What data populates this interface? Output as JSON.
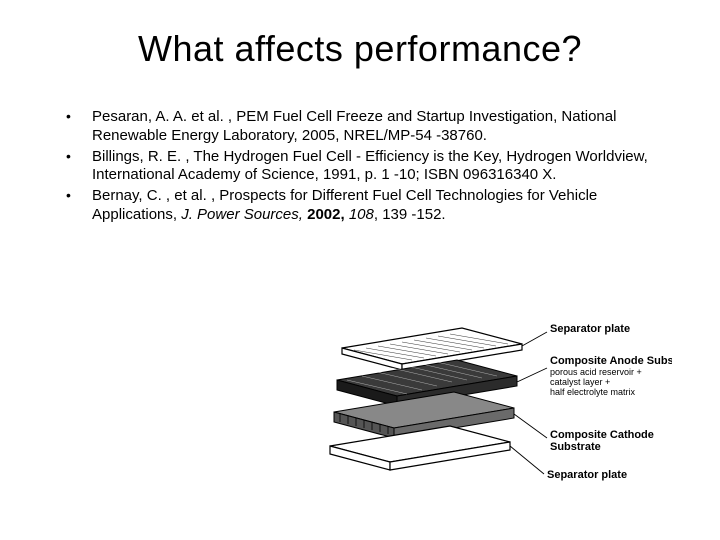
{
  "title": "What affects performance?",
  "bullets": [
    {
      "segments": [
        {
          "text": "Pesaran, A. A. et al. , PEM Fuel Cell Freeze and Startup Investigation, National Renewable Energy Laboratory, 2005, NREL/MP-54 -38760."
        }
      ]
    },
    {
      "segments": [
        {
          "text": "Billings, R. E. , The Hydrogen Fuel Cell - Efficiency is the Key, Hydrogen Worldview, International Academy of Science, 1991, p. 1 -10; ISBN 096316340 X."
        }
      ]
    },
    {
      "segments": [
        {
          "text": "Bernay, C. , et al. , Prospects for Different Fuel Cell Technologies for Vehicle Applications, "
        },
        {
          "text": "J. Power Sources, ",
          "italic": true
        },
        {
          "text": "2002, ",
          "bold": true
        },
        {
          "text": "108",
          "italic": true
        },
        {
          "text": ", 139 -152."
        }
      ]
    }
  ],
  "diagram": {
    "labels": {
      "sep_top": "Separator plate",
      "anode": "Composite Anode Substrate:",
      "anode_sub1": "porous acid reservoir +",
      "anode_sub2": "catalyst layer +",
      "anode_sub3": "half electrolyte matrix",
      "cathode": "Composite Cathode",
      "cathode_sub": "Substrate",
      "sep_bot": "Separator plate"
    },
    "colors": {
      "stroke": "#000000",
      "fill_plate": "#ffffff",
      "fill_dark": "#2b2b2b",
      "fill_gray": "#7a7a7a"
    }
  }
}
